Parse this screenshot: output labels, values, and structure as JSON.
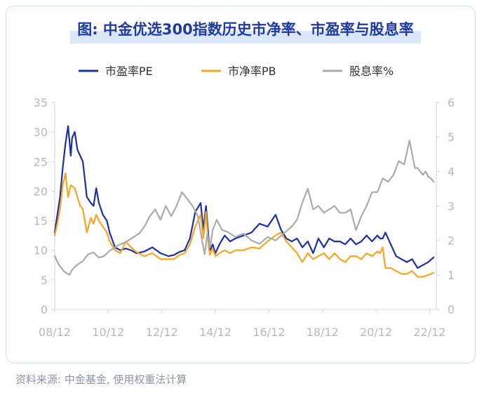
{
  "chart_data": {
    "type": "line",
    "title": "图: 中金优选300指数历史市净率、市盈率与股息率",
    "source": "资料来源: 中金基金, 使用权重法计算",
    "x_tick_labels": [
      "08/12",
      "10/12",
      "12/12",
      "14/12",
      "16/12",
      "18/12",
      "20/12",
      "22/12"
    ],
    "left_axis": {
      "ylim": [
        0,
        35
      ],
      "ticks": [
        "0",
        "5",
        "10",
        "15",
        "20",
        "25",
        "30",
        "35"
      ]
    },
    "right_axis": {
      "ylim": [
        0,
        6
      ],
      "ticks": [
        "0",
        "1",
        "2",
        "3",
        "4",
        "5",
        "6"
      ]
    },
    "x_range": [
      2008.95,
      2023.2
    ],
    "legend_placement": "top",
    "series": [
      {
        "name": "市盈率PE",
        "color": "#1a2fa8",
        "axis": "left",
        "x": [
          2008.95,
          2009.05,
          2009.15,
          2009.25,
          2009.35,
          2009.45,
          2009.55,
          2009.6,
          2009.7,
          2009.8,
          2009.9,
          2010.0,
          2010.15,
          2010.3,
          2010.4,
          2010.5,
          2010.6,
          2010.75,
          2010.9,
          2011.0,
          2011.2,
          2011.4,
          2011.6,
          2011.8,
          2012.0,
          2012.3,
          2012.6,
          2012.9,
          2013.2,
          2013.4,
          2013.6,
          2013.8,
          2014.0,
          2014.2,
          2014.4,
          2014.5,
          2014.6,
          2014.7,
          2014.75,
          2014.85,
          2014.95,
          2015.1,
          2015.3,
          2015.5,
          2015.7,
          2016.0,
          2016.3,
          2016.6,
          2016.9,
          2017.2,
          2017.4,
          2017.6,
          2017.8,
          2018.0,
          2018.2,
          2018.4,
          2018.6,
          2018.8,
          2019.0,
          2019.2,
          2019.4,
          2019.6,
          2019.8,
          2020.0,
          2020.2,
          2020.4,
          2020.6,
          2020.8,
          2021.0,
          2021.1,
          2021.2,
          2021.3,
          2021.5,
          2021.7,
          2021.9,
          2022.1,
          2022.3,
          2022.5,
          2022.7,
          2022.9,
          2023.1
        ],
        "y": [
          13,
          16,
          19,
          24,
          28,
          31,
          26,
          29,
          30,
          27,
          26,
          25,
          19,
          18,
          17.5,
          20.5,
          18,
          16,
          15,
          13,
          10.5,
          10,
          10.3,
          10,
          9.5,
          9.8,
          10.5,
          9.5,
          9,
          9.2,
          9.7,
          10,
          12,
          16.5,
          18,
          13.5,
          17.5,
          12,
          10,
          11,
          9.5,
          11,
          12.5,
          11.5,
          12,
          12.5,
          13,
          14.5,
          14,
          16,
          13.5,
          12,
          11.5,
          12,
          10.5,
          11.5,
          9.5,
          12,
          10.5,
          12,
          11.5,
          11.5,
          11,
          12,
          11,
          11.5,
          12.5,
          11.5,
          12.5,
          12,
          12,
          13,
          11,
          9,
          8.5,
          8,
          8.5,
          7,
          7.5,
          8,
          8.8
        ]
      },
      {
        "name": "市净率PB",
        "color": "#f5a623",
        "axis": "left",
        "x": [
          2008.95,
          2009.05,
          2009.15,
          2009.25,
          2009.35,
          2009.45,
          2009.55,
          2009.7,
          2009.8,
          2009.9,
          2010.0,
          2010.15,
          2010.3,
          2010.4,
          2010.5,
          2010.6,
          2010.75,
          2010.9,
          2011.0,
          2011.2,
          2011.4,
          2011.6,
          2011.8,
          2012.0,
          2012.3,
          2012.6,
          2012.9,
          2013.2,
          2013.4,
          2013.6,
          2013.8,
          2014.0,
          2014.2,
          2014.4,
          2014.5,
          2014.6,
          2014.7,
          2014.75,
          2014.85,
          2014.95,
          2015.1,
          2015.3,
          2015.5,
          2015.7,
          2016.0,
          2016.3,
          2016.6,
          2016.9,
          2017.2,
          2017.4,
          2017.6,
          2017.8,
          2018.0,
          2018.2,
          2018.4,
          2018.6,
          2018.8,
          2019.0,
          2019.2,
          2019.4,
          2019.6,
          2019.8,
          2020.0,
          2020.2,
          2020.4,
          2020.6,
          2020.8,
          2021.0,
          2021.1,
          2021.2,
          2021.3,
          2021.5,
          2021.7,
          2021.9,
          2022.1,
          2022.3,
          2022.5,
          2022.7,
          2022.9,
          2023.1
        ],
        "y": [
          12.5,
          14.5,
          17,
          21,
          23,
          19,
          21,
          20.5,
          19,
          17.5,
          17,
          13,
          15.5,
          14.5,
          16,
          15,
          14,
          13,
          11.5,
          10,
          9.5,
          11.5,
          10.5,
          9.7,
          9,
          9.5,
          8.5,
          8.5,
          8.5,
          9.2,
          9.5,
          11,
          14,
          16,
          12,
          16.5,
          10.5,
          9.2,
          10.3,
          9,
          9.5,
          10,
          9.5,
          10,
          10,
          10.5,
          10.3,
          11.5,
          12.5,
          13,
          11.5,
          10.5,
          9.5,
          8,
          9.5,
          8.5,
          9,
          9.5,
          8.5,
          9.5,
          8.5,
          8,
          9,
          9,
          8.5,
          9.5,
          9,
          9.8,
          9.5,
          10.5,
          7,
          7,
          6.5,
          6,
          6,
          6.5,
          5.5,
          5.5,
          5.8,
          6.2
        ]
      },
      {
        "name": "股息率%",
        "color": "#aaaaaa",
        "axis": "right",
        "x": [
          2008.95,
          2009.1,
          2009.3,
          2009.5,
          2009.6,
          2009.8,
          2010.0,
          2010.2,
          2010.4,
          2010.6,
          2010.8,
          2011.0,
          2011.3,
          2011.6,
          2011.9,
          2012.1,
          2012.3,
          2012.5,
          2012.7,
          2012.9,
          2013.1,
          2013.3,
          2013.5,
          2013.7,
          2013.9,
          2014.1,
          2014.3,
          2014.45,
          2014.55,
          2014.65,
          2014.75,
          2014.85,
          2015.0,
          2015.2,
          2015.4,
          2015.7,
          2016.0,
          2016.3,
          2016.6,
          2016.9,
          2017.2,
          2017.5,
          2017.8,
          2018.0,
          2018.2,
          2018.4,
          2018.6,
          2018.8,
          2019.0,
          2019.2,
          2019.4,
          2019.6,
          2019.8,
          2020.0,
          2020.2,
          2020.4,
          2020.6,
          2020.8,
          2021.0,
          2021.2,
          2021.4,
          2021.6,
          2021.8,
          2022.0,
          2022.2,
          2022.4,
          2022.5,
          2022.6,
          2022.7,
          2022.8,
          2022.9,
          2023.0,
          2023.1
        ],
        "y": [
          1.55,
          1.3,
          1.1,
          1.0,
          1.15,
          1.3,
          1.4,
          1.6,
          1.65,
          1.5,
          1.55,
          1.7,
          1.85,
          1.95,
          2.1,
          2.2,
          2.4,
          2.7,
          2.9,
          2.6,
          3.0,
          2.7,
          3.0,
          3.4,
          3.2,
          3.0,
          2.7,
          2.0,
          1.6,
          2.2,
          1.8,
          2.3,
          2.6,
          2.3,
          2.25,
          2.1,
          2.2,
          2.0,
          1.9,
          2.1,
          2.0,
          2.2,
          2.4,
          2.6,
          3.1,
          3.5,
          2.9,
          3.0,
          2.8,
          2.9,
          3.0,
          2.8,
          2.8,
          2.9,
          2.3,
          2.7,
          3.0,
          3.4,
          3.4,
          3.8,
          3.7,
          3.9,
          4.3,
          4.2,
          4.9,
          4.1,
          4.1,
          4.0,
          3.9,
          4.0,
          3.85,
          3.8,
          3.7
        ]
      }
    ]
  }
}
